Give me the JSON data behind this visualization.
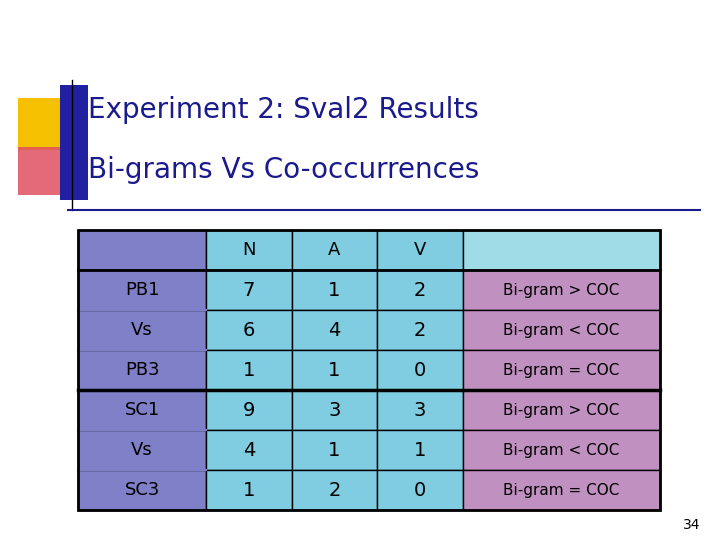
{
  "title_line1": "Experiment 2: Sval2 Results",
  "title_line2": "Bi-grams Vs Co-occurrences",
  "title_color": "#1a1a8c",
  "title_fontsize": 20,
  "page_number": "34",
  "table": {
    "headers": [
      "",
      "N",
      "A",
      "V",
      ""
    ],
    "rows": [
      [
        "PB1",
        "7",
        "1",
        "2",
        "Bi-gram > COC"
      ],
      [
        "Vs",
        "6",
        "4",
        "2",
        "Bi-gram < COC"
      ],
      [
        "PB3",
        "1",
        "1",
        "0",
        "Bi-gram = COC"
      ],
      [
        "SC1",
        "9",
        "3",
        "3",
        "Bi-gram > COC"
      ],
      [
        "Vs",
        "4",
        "1",
        "1",
        "Bi-gram < COC"
      ],
      [
        "SC3",
        "1",
        "2",
        "0",
        "Bi-gram = COC"
      ]
    ],
    "col0_color": "#8080c8",
    "col13_color": "#80cce0",
    "col4_color": "#c090c0",
    "header_last_color": "#a0dce8"
  },
  "background_color": "#ffffff"
}
